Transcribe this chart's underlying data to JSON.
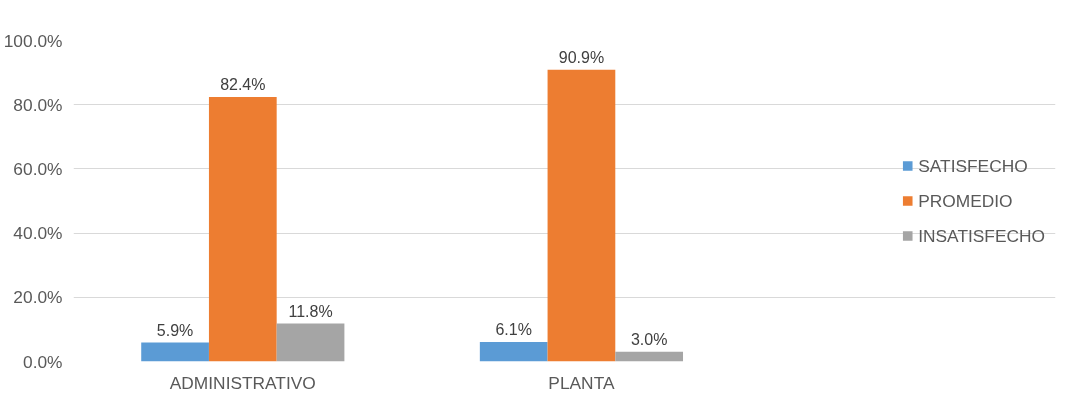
{
  "chart_data": {
    "type": "bar",
    "categories": [
      "ADMINISTRATIVO",
      "PLANTA"
    ],
    "series": [
      {
        "name": "SATISFECHO",
        "color": "#5b9bd5",
        "values": [
          5.9,
          6.1
        ],
        "value_labels": [
          "5.9%",
          "6.1%"
        ]
      },
      {
        "name": "PROMEDIO",
        "color": "#ed7d31",
        "values": [
          82.4,
          90.9
        ],
        "value_labels": [
          "82.4%",
          "90.9%"
        ]
      },
      {
        "name": "INSATISFECHO",
        "color": "#a5a5a5",
        "values": [
          11.8,
          3.0
        ],
        "value_labels": [
          "11.8%",
          "3.0%"
        ]
      }
    ],
    "ylim": [
      0,
      100
    ],
    "yticks": [
      {
        "value": 0,
        "label": "0.0%"
      },
      {
        "value": 20,
        "label": "20.0%"
      },
      {
        "value": 40,
        "label": "40.0%"
      },
      {
        "value": 60,
        "label": "60.0%"
      },
      {
        "value": 80,
        "label": "80.0%"
      },
      {
        "value": 100,
        "label": "100.0%"
      }
    ],
    "grid": "y",
    "legend": "right"
  }
}
